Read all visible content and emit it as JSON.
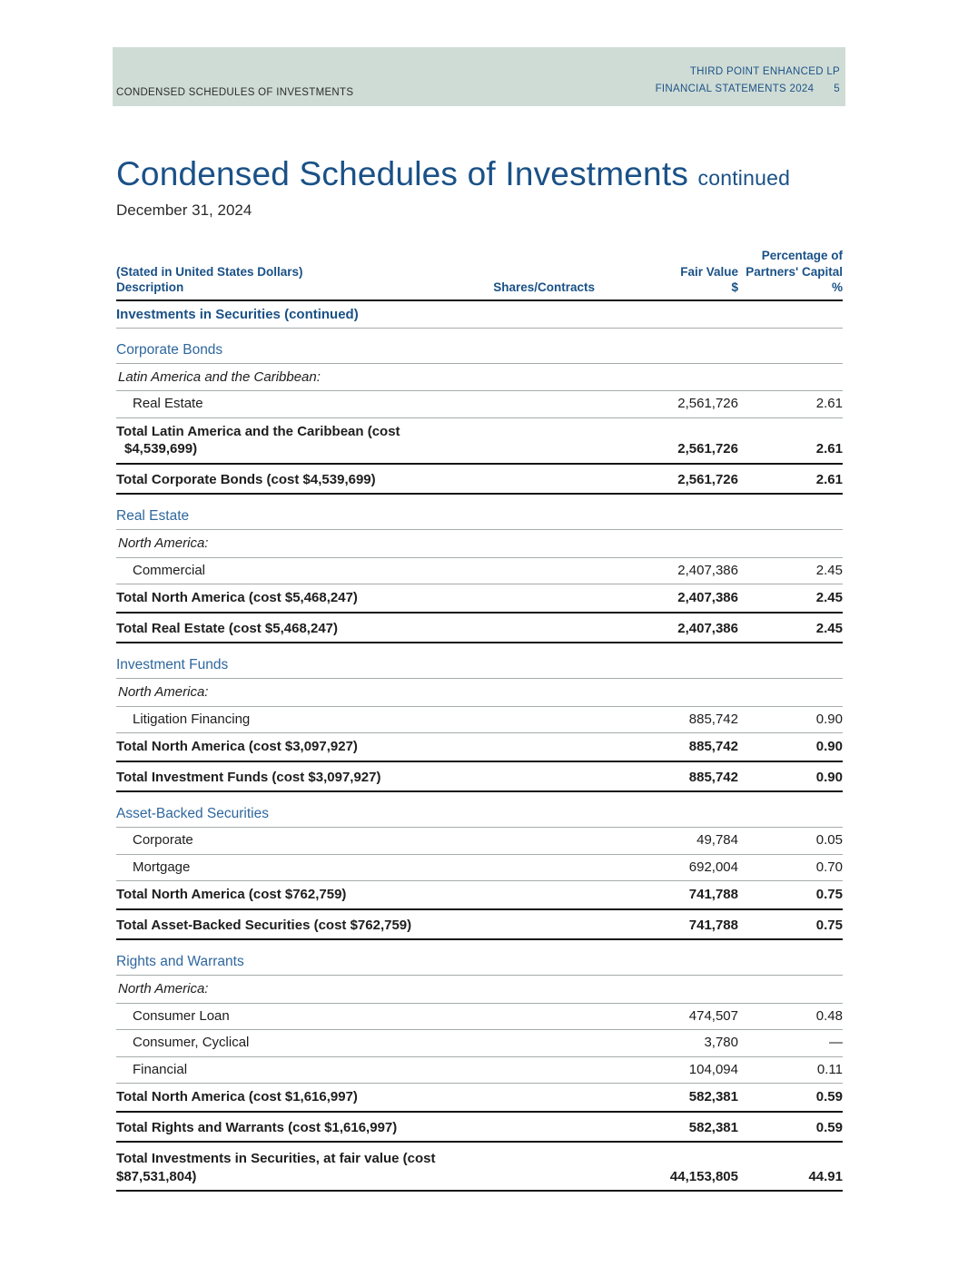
{
  "page_header": {
    "left": "CONDENSED SCHEDULES OF INVESTMENTS",
    "right_line1": "THIRD POINT ENHANCED LP",
    "right_line2": "FINANCIAL STATEMENTS 2024",
    "page_number": "5"
  },
  "title": {
    "main": "Condensed Schedules of Investments",
    "suffix": "continued",
    "date": "December 31, 2024"
  },
  "colors": {
    "brand_blue": "#1a5187",
    "section_blue": "#2e679e",
    "header_band_bg": "#cfdcd5"
  },
  "table": {
    "header": {
      "stated": "(Stated in United States Dollars)",
      "description": "Description",
      "shares": "Shares/Contracts",
      "fair_value_line1": "Fair Value",
      "fair_value_line2": "$",
      "pct_line1": "Percentage of",
      "pct_line2": "Partners' Capital",
      "pct_line3": "%"
    },
    "intro": "Investments in Securities (continued)",
    "sections": [
      {
        "title": "Corporate Bonds",
        "rows": [
          {
            "type": "region",
            "label": "Latin America and the Caribbean:",
            "fair": "",
            "pct": ""
          },
          {
            "type": "data",
            "label": "Real Estate",
            "fair": "2,561,726",
            "pct": "2.61"
          },
          {
            "type": "total",
            "label": "Total Latin America and the Caribbean (cost",
            "label2": "$4,539,699)",
            "label2_indent": true,
            "fair": "2,561,726",
            "pct": "2.61"
          },
          {
            "type": "sectotal",
            "label": "Total Corporate Bonds (cost $4,539,699)",
            "fair": "2,561,726",
            "pct": "2.61"
          }
        ]
      },
      {
        "title": "Real Estate",
        "rows": [
          {
            "type": "region",
            "label": "North America:",
            "fair": "",
            "pct": ""
          },
          {
            "type": "data",
            "label": "Commercial",
            "fair": "2,407,386",
            "pct": "2.45"
          },
          {
            "type": "total",
            "label": "Total North America (cost $5,468,247)",
            "fair": "2,407,386",
            "pct": "2.45"
          },
          {
            "type": "sectotal",
            "label": "Total Real Estate (cost $5,468,247)",
            "fair": "2,407,386",
            "pct": "2.45"
          }
        ]
      },
      {
        "title": "Investment Funds",
        "rows": [
          {
            "type": "region",
            "label": "North America:",
            "fair": "",
            "pct": ""
          },
          {
            "type": "data",
            "label": "Litigation Financing",
            "fair": "885,742",
            "pct": "0.90"
          },
          {
            "type": "total",
            "label": "Total North America (cost $3,097,927)",
            "fair": "885,742",
            "pct": "0.90"
          },
          {
            "type": "sectotal",
            "label": "Total Investment Funds (cost $3,097,927)",
            "fair": "885,742",
            "pct": "0.90"
          }
        ]
      },
      {
        "title": "Asset-Backed Securities",
        "rows": [
          {
            "type": "data",
            "label": "Corporate",
            "fair": "49,784",
            "pct": "0.05"
          },
          {
            "type": "data",
            "label": "Mortgage",
            "fair": "692,004",
            "pct": "0.70"
          },
          {
            "type": "total",
            "label": "Total North America (cost $762,759)",
            "fair": "741,788",
            "pct": "0.75"
          },
          {
            "type": "sectotal",
            "label": "Total Asset-Backed Securities (cost $762,759)",
            "fair": "741,788",
            "pct": "0.75"
          }
        ]
      },
      {
        "title": "Rights and Warrants",
        "rows": [
          {
            "type": "region",
            "label": "North America:",
            "fair": "",
            "pct": ""
          },
          {
            "type": "data",
            "label": "Consumer Loan",
            "fair": "474,507",
            "pct": "0.48"
          },
          {
            "type": "data",
            "label": "Consumer, Cyclical",
            "fair": "3,780",
            "pct": "—"
          },
          {
            "type": "data",
            "label": "Financial",
            "fair": "104,094",
            "pct": "0.11"
          },
          {
            "type": "total",
            "label": "Total North America (cost $1,616,997)",
            "fair": "582,381",
            "pct": "0.59"
          },
          {
            "type": "sectotal",
            "label": "Total Rights and Warrants (cost $1,616,997)",
            "fair": "582,381",
            "pct": "0.59"
          }
        ]
      }
    ],
    "grand_total": {
      "label": "Total Investments in Securities, at fair value (cost",
      "label2": "$87,531,804)",
      "fair": "44,153,805",
      "pct": "44.91"
    }
  }
}
